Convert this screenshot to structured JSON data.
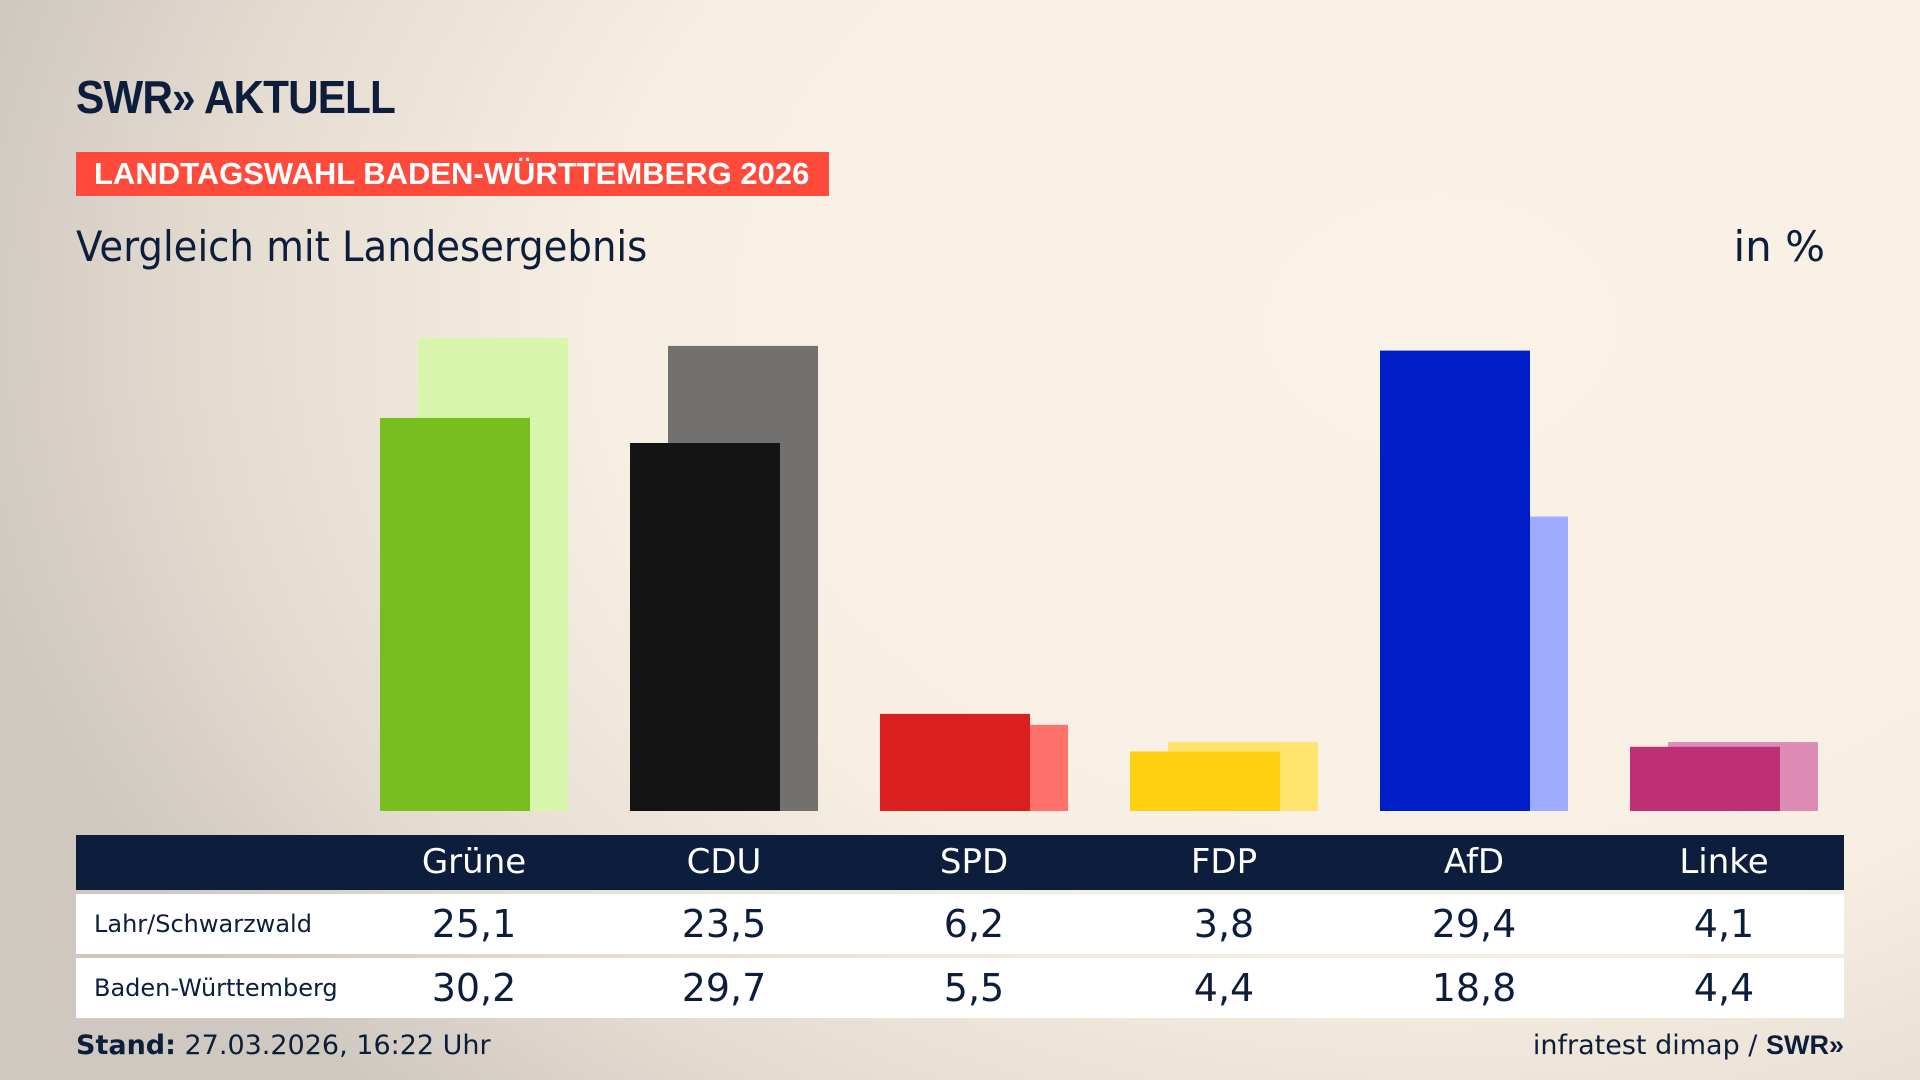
{
  "brand": {
    "logo": "SWR» AKTUELL"
  },
  "banner": "LANDTAGSWAHL BADEN-WÜRTTEMBERG 2026",
  "chart_data": {
    "type": "bar",
    "title": "Vergleich mit Landesergebnis",
    "unit": "in %",
    "categories": [
      "Grüne",
      "CDU",
      "SPD",
      "FDP",
      "AfD",
      "Linke"
    ],
    "series": [
      {
        "name": "Lahr/Schwarzwald",
        "values": [
          25.1,
          23.5,
          6.2,
          3.8,
          29.4,
          4.1
        ],
        "labels": [
          "25,1",
          "23,5",
          "6,2",
          "3,8",
          "29,4",
          "4,1"
        ],
        "colors": [
          "#78be1e",
          "#141414",
          "#d91f1f",
          "#ffd00f",
          "#001ec8",
          "#be3075"
        ]
      },
      {
        "name": "Baden-Württemberg",
        "values": [
          30.2,
          29.7,
          5.5,
          4.4,
          18.8,
          4.4
        ],
        "labels": [
          "30,2",
          "29,7",
          "5,5",
          "4,4",
          "18,8",
          "4,4"
        ],
        "colors": [
          "#d7f5ab",
          "#737170",
          "#ff716b",
          "#ffe36f",
          "#9fabff",
          "#de8bb5"
        ]
      }
    ],
    "ylim": [
      0,
      31
    ],
    "grid": false
  },
  "footer": {
    "stand_label": "Stand:",
    "stand_value": " 27.03.2026, 16:22 Uhr",
    "source": "infratest dimap / ",
    "source_logo": "SWR»"
  }
}
